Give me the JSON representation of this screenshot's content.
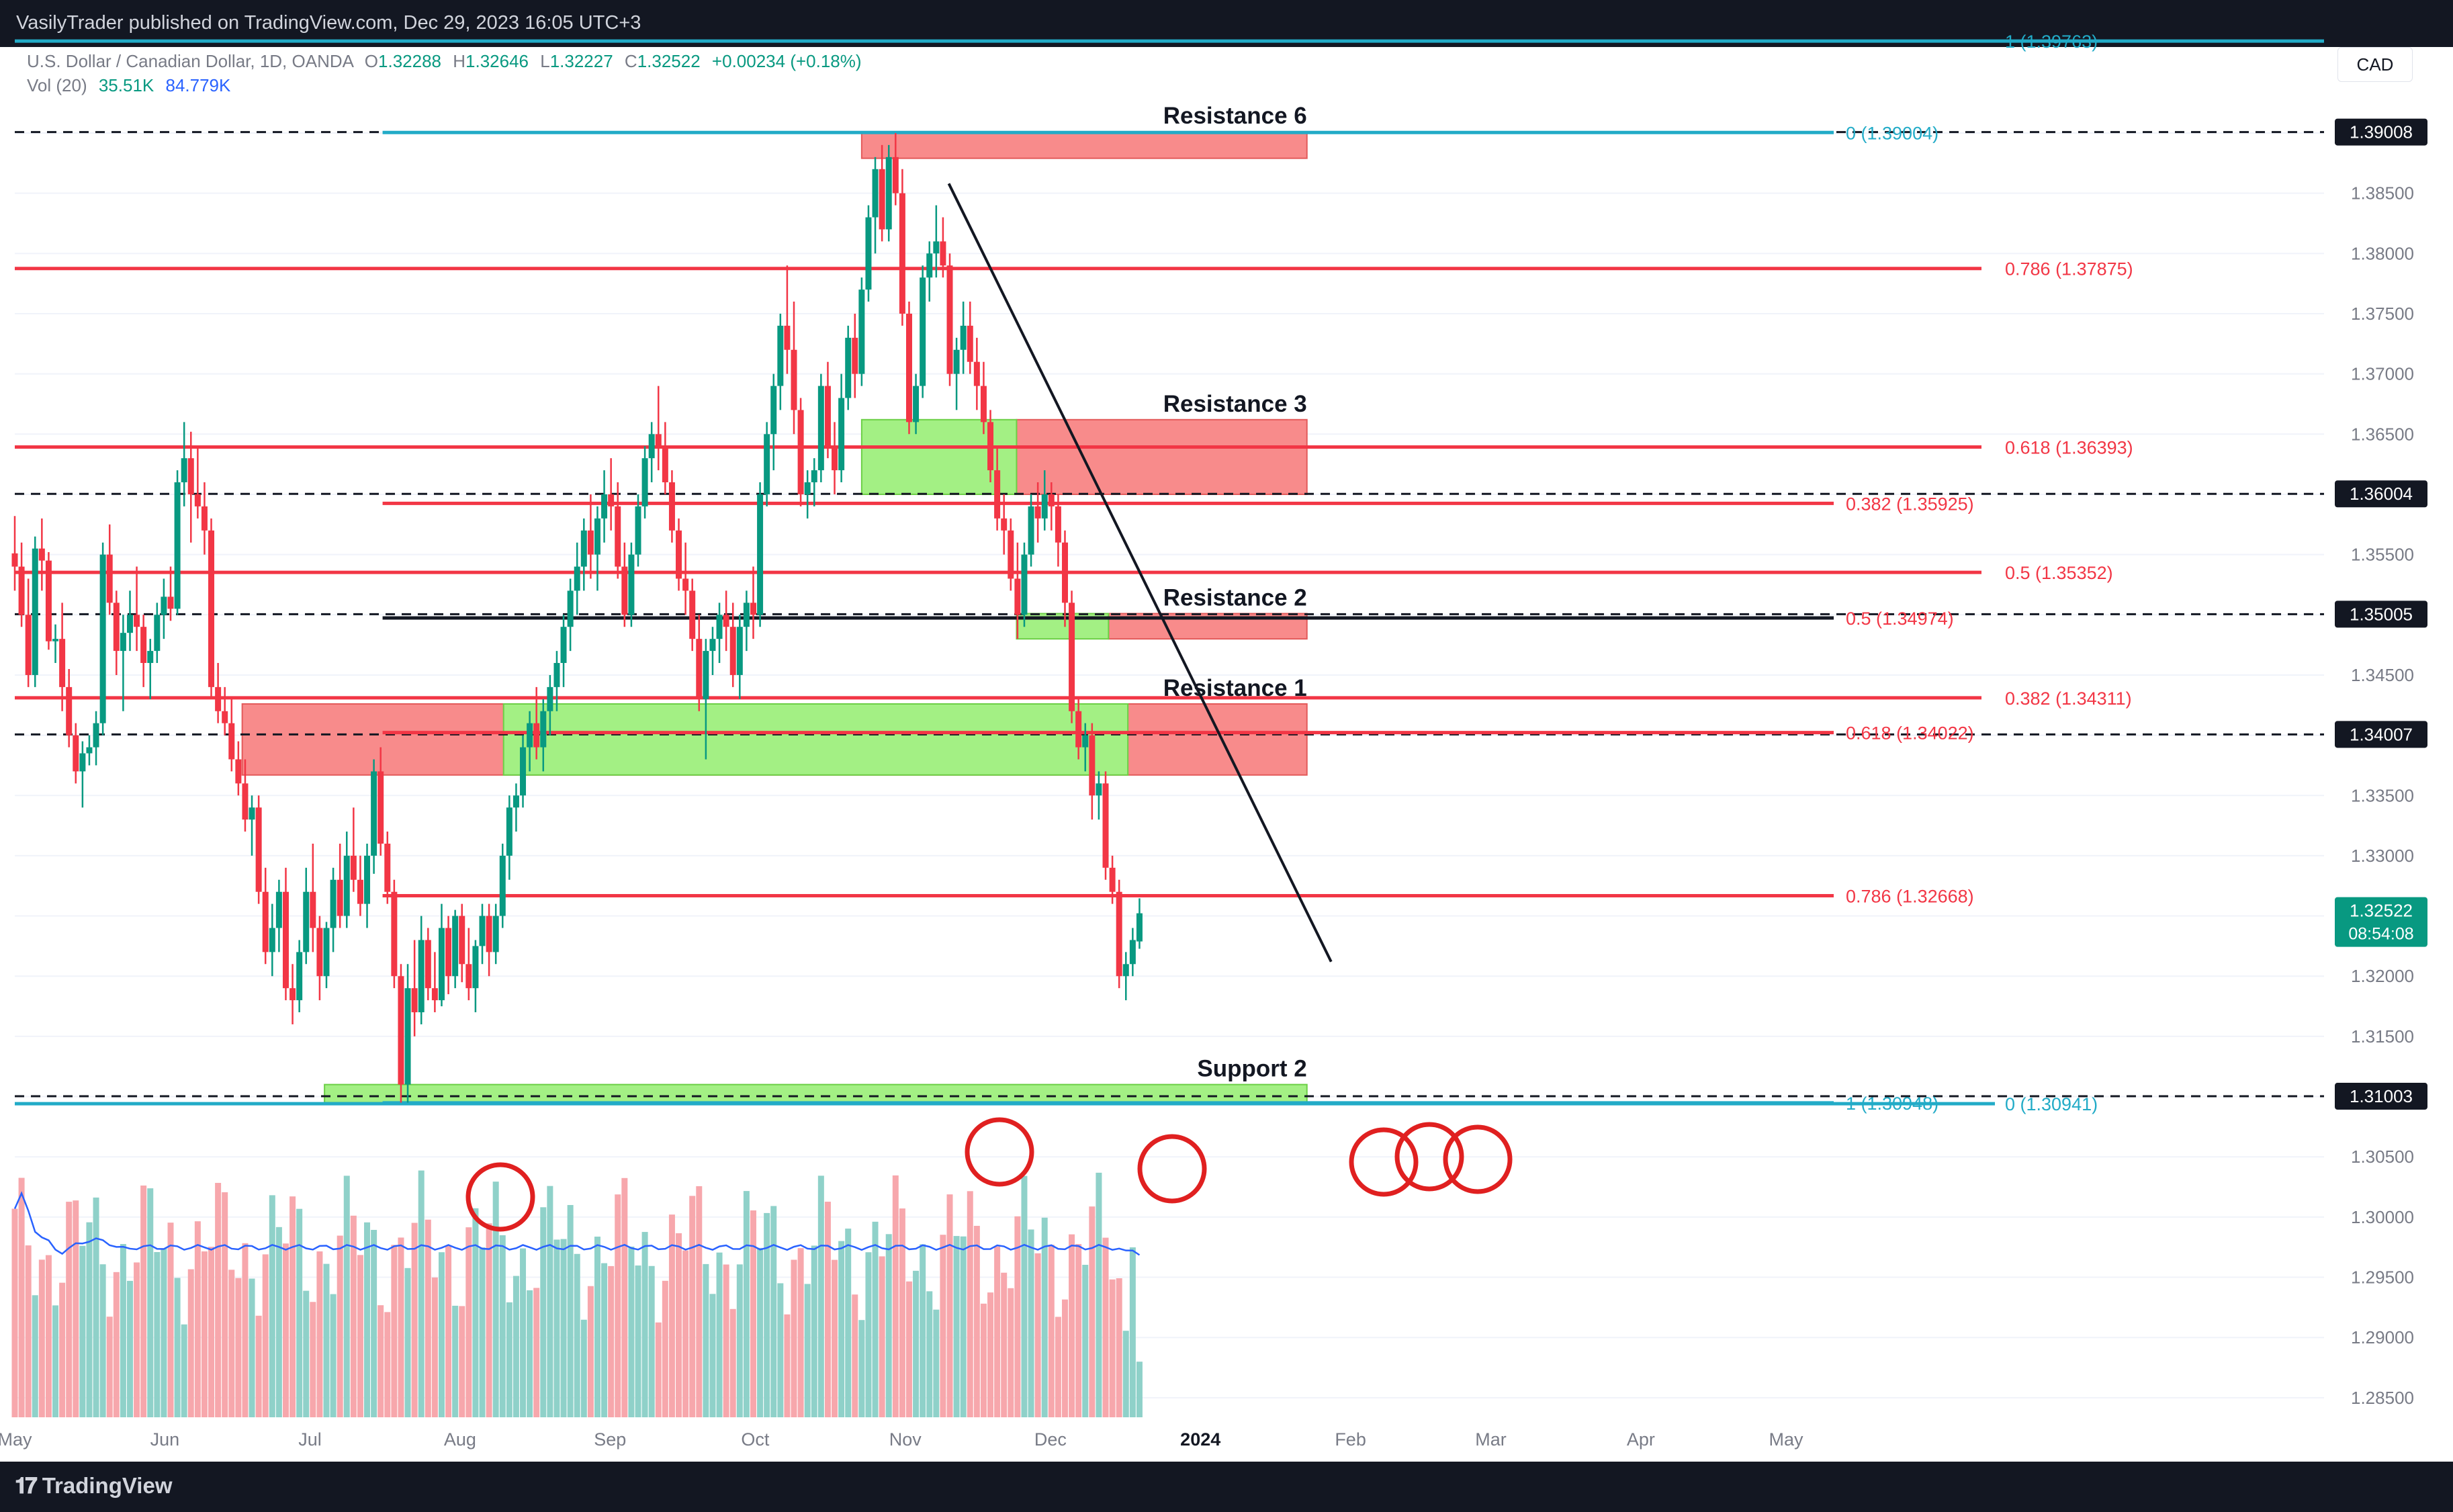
{
  "header": {
    "publisher_line": "VasilyTrader published on TradingView.com, Dec 29, 2023 16:05 UTC+3"
  },
  "legend": {
    "symbol": "U.S. Dollar / Canadian Dollar, 1D, OANDA",
    "o_label": "O",
    "o_value": "1.32288",
    "h_label": "H",
    "h_value": "1.32646",
    "l_label": "L",
    "l_value": "1.32227",
    "c_label": "C",
    "c_value": "1.32522",
    "change": "+0.00234 (+0.18%)",
    "vol_label": "Vol (20)",
    "vol_value": "35.51K",
    "vol_ma": "84.779K"
  },
  "currency": "CAD",
  "footer": {
    "brand": "TradingView"
  },
  "colors": {
    "up": "#089981",
    "down": "#f23645",
    "up_vol": "#8fd1c9",
    "down_vol": "#f7a7ac",
    "red_line": "#f23645",
    "teal_line": "#22abc7",
    "resistance_zone": "#f88b8b",
    "support_zone": "#a3f084",
    "ma_line": "#2962ff",
    "circle": "#e02020",
    "price_tag": "#131722",
    "last_tag": "#089981"
  },
  "chart_data": {
    "type": "candlestick",
    "symbol": "U.S. Dollar / Canadian Dollar, 1D, OANDA",
    "y_ticks": [
      "1.39000",
      "1.38500",
      "1.38000",
      "1.37500",
      "1.37000",
      "1.36500",
      "1.36000",
      "1.35500",
      "1.35000",
      "1.34500",
      "1.34000",
      "1.33500",
      "1.33000",
      "1.32500",
      "1.32000",
      "1.31500",
      "1.31000",
      "1.30500",
      "1.30000",
      "1.29500",
      "1.29000",
      "1.28500"
    ],
    "y_tick_values": [
      1.39,
      1.385,
      1.38,
      1.375,
      1.37,
      1.365,
      1.36,
      1.355,
      1.35,
      1.345,
      1.34,
      1.335,
      1.33,
      1.325,
      1.32,
      1.315,
      1.31,
      1.305,
      1.3,
      1.295,
      1.29,
      1.285
    ],
    "ylim": [
      1.2825,
      1.3985
    ],
    "x_ticks": [
      "May",
      "Jun",
      "Jul",
      "Aug",
      "Sep",
      "Oct",
      "Nov",
      "Dec",
      "2024",
      "Feb",
      "Mar",
      "Apr",
      "May"
    ],
    "x_tick_days": [
      0,
      31,
      61,
      92,
      123,
      153,
      184,
      214,
      245,
      276,
      305,
      336,
      366
    ],
    "price_tags": [
      {
        "label": "1.39008",
        "value": 1.39008
      },
      {
        "label": "1.36004",
        "value": 1.36004
      },
      {
        "label": "1.35005",
        "value": 1.35005
      },
      {
        "label": "1.34007",
        "value": 1.34007
      },
      {
        "label": "1.31003",
        "value": 1.31003
      }
    ],
    "last_price": {
      "label": "1.32522",
      "timer": "08:54:08",
      "value": 1.32522
    },
    "horizontal_levels": [
      {
        "value": 1.39008,
        "style": "dashed"
      },
      {
        "value": 1.36004,
        "style": "dashed"
      },
      {
        "value": 1.35005,
        "style": "dashed"
      },
      {
        "value": 1.34007,
        "style": "dashed"
      },
      {
        "value": 1.31003,
        "style": "dashed"
      }
    ],
    "fib_left": {
      "from_day": 0,
      "to_day": 206,
      "levels": [
        {
          "ratio": "0.786",
          "label": "0.786 (1.37875)",
          "value": 1.37875
        },
        {
          "ratio": "0.618",
          "label": "0.618 (1.36393)",
          "value": 1.36393
        },
        {
          "ratio": "0.5",
          "label": "0.5 (1.35352)",
          "value": 1.35352
        },
        {
          "ratio": "0.382",
          "label": "0.382 (1.34311)",
          "value": 1.34311
        }
      ],
      "bottom_label": "0 (1.30941)",
      "bottom_value": 1.30941
    },
    "fib_right": {
      "from_day": 76,
      "to_day": 206,
      "levels": [
        {
          "label": "0 (1.39004)",
          "value": 1.39004,
          "color": "teal"
        },
        {
          "label": "0.382 (1.35925)",
          "value": 1.35925,
          "color": "red"
        },
        {
          "label": "0.5 (1.34974)",
          "value": 1.34974,
          "color": "black"
        },
        {
          "label": "0.618 (1.34022)",
          "value": 1.34022,
          "color": "red"
        },
        {
          "label": "0.786 (1.32668)",
          "value": 1.32668,
          "color": "red"
        },
        {
          "label": "1 (1.30948)",
          "value": 1.30948,
          "color": "teal"
        }
      ],
      "top_label": "1 (1.39763)",
      "top_value": 1.39763
    },
    "zones": [
      {
        "label": "Resistance 6",
        "kind": "resistance",
        "from_day": 175,
        "to_day": 267,
        "top": 1.3901,
        "bottom": 1.3879
      },
      {
        "label": "Resistance 3",
        "kind": "resistance",
        "from_day": 207,
        "to_day": 267,
        "top": 1.3662,
        "bottom": 1.36
      },
      {
        "label": "",
        "kind": "support",
        "from_day": 175,
        "to_day": 207,
        "top": 1.3662,
        "bottom": 1.36
      },
      {
        "label": "Resistance 2",
        "kind": "resistance",
        "from_day": 226,
        "to_day": 267,
        "top": 1.3501,
        "bottom": 1.348
      },
      {
        "label": "",
        "kind": "support",
        "from_day": 207,
        "to_day": 226,
        "top": 1.3501,
        "bottom": 1.348
      },
      {
        "label": "Resistance 1",
        "kind": "resistance",
        "from_day": 47,
        "to_day": 267,
        "top": 1.3426,
        "bottom": 1.3367
      },
      {
        "label": "",
        "kind": "support",
        "from_day": 101,
        "to_day": 230,
        "top": 1.3426,
        "bottom": 1.3367
      },
      {
        "label": "Support 2",
        "kind": "support",
        "from_day": 64,
        "to_day": 267,
        "top": 1.311,
        "bottom": 1.3095
      }
    ],
    "trendline": {
      "from_day": 193,
      "from_value": 1.3858,
      "to_day": 272,
      "to_value": 1.3212
    },
    "candles_ohlc": [
      [
        1.3551,
        1.3582,
        1.352,
        1.354
      ],
      [
        1.354,
        1.356,
        1.349,
        1.35
      ],
      [
        1.35,
        1.353,
        1.344,
        1.345
      ],
      [
        1.345,
        1.3565,
        1.344,
        1.3555
      ],
      [
        1.3555,
        1.358,
        1.352,
        1.3545
      ],
      [
        1.3545,
        1.3552,
        1.3471,
        1.3478
      ],
      [
        1.3478,
        1.3492,
        1.346,
        1.348
      ],
      [
        1.348,
        1.351,
        1.342,
        1.344
      ],
      [
        1.344,
        1.3455,
        1.339,
        1.34
      ],
      [
        1.34,
        1.341,
        1.336,
        1.337
      ],
      [
        1.337,
        1.3395,
        1.334,
        1.3385
      ],
      [
        1.3385,
        1.34,
        1.3375,
        1.339
      ],
      [
        1.339,
        1.342,
        1.3375,
        1.341
      ],
      [
        1.341,
        1.356,
        1.34,
        1.355
      ],
      [
        1.355,
        1.3575,
        1.35,
        1.351
      ],
      [
        1.351,
        1.352,
        1.345,
        1.347
      ],
      [
        1.347,
        1.35,
        1.342,
        1.3485
      ],
      [
        1.3485,
        1.352,
        1.347,
        1.35
      ],
      [
        1.35,
        1.354,
        1.347,
        1.349
      ],
      [
        1.349,
        1.35,
        1.344,
        1.346
      ],
      [
        1.346,
        1.348,
        1.343,
        1.347
      ],
      [
        1.347,
        1.351,
        1.346,
        1.35
      ],
      [
        1.35,
        1.353,
        1.348,
        1.3515
      ],
      [
        1.3515,
        1.354,
        1.3495,
        1.3505
      ],
      [
        1.3505,
        1.362,
        1.35,
        1.361
      ],
      [
        1.361,
        1.366,
        1.359,
        1.363
      ],
      [
        1.363,
        1.3652,
        1.356,
        1.36
      ],
      [
        1.36,
        1.364,
        1.358,
        1.359
      ],
      [
        1.359,
        1.361,
        1.355,
        1.357
      ],
      [
        1.357,
        1.358,
        1.343,
        1.344
      ],
      [
        1.344,
        1.346,
        1.341,
        1.342
      ],
      [
        1.342,
        1.344,
        1.34,
        1.341
      ],
      [
        1.341,
        1.343,
        1.337,
        1.338
      ],
      [
        1.338,
        1.3395,
        1.335,
        1.336
      ],
      [
        1.336,
        1.338,
        1.332,
        1.333
      ],
      [
        1.333,
        1.335,
        1.33,
        1.334
      ],
      [
        1.334,
        1.335,
        1.326,
        1.327
      ],
      [
        1.327,
        1.329,
        1.321,
        1.322
      ],
      [
        1.322,
        1.326,
        1.32,
        1.324
      ],
      [
        1.324,
        1.328,
        1.322,
        1.327
      ],
      [
        1.327,
        1.329,
        1.318,
        1.319
      ],
      [
        1.319,
        1.321,
        1.316,
        1.318
      ],
      [
        1.318,
        1.323,
        1.317,
        1.322
      ],
      [
        1.322,
        1.329,
        1.321,
        1.327
      ],
      [
        1.327,
        1.331,
        1.322,
        1.324
      ],
      [
        1.324,
        1.325,
        1.318,
        1.32
      ],
      [
        1.32,
        1.3245,
        1.319,
        1.324
      ],
      [
        1.324,
        1.329,
        1.322,
        1.328
      ],
      [
        1.328,
        1.331,
        1.324,
        1.325
      ],
      [
        1.325,
        1.332,
        1.324,
        1.33
      ],
      [
        1.33,
        1.334,
        1.327,
        1.328
      ],
      [
        1.328,
        1.33,
        1.325,
        1.326
      ],
      [
        1.326,
        1.331,
        1.324,
        1.33
      ],
      [
        1.33,
        1.338,
        1.3285,
        1.337
      ],
      [
        1.337,
        1.339,
        1.33,
        1.331
      ],
      [
        1.331,
        1.332,
        1.326,
        1.327
      ],
      [
        1.327,
        1.328,
        1.319,
        1.32
      ],
      [
        1.32,
        1.321,
        1.3095,
        1.311
      ],
      [
        1.311,
        1.321,
        1.3095,
        1.319
      ],
      [
        1.319,
        1.323,
        1.315,
        1.317
      ],
      [
        1.317,
        1.325,
        1.316,
        1.323
      ],
      [
        1.323,
        1.324,
        1.318,
        1.319
      ],
      [
        1.319,
        1.322,
        1.317,
        1.318
      ],
      [
        1.318,
        1.326,
        1.3175,
        1.324
      ],
      [
        1.324,
        1.325,
        1.3185,
        1.32
      ],
      [
        1.32,
        1.3255,
        1.319,
        1.325
      ],
      [
        1.325,
        1.326,
        1.3195,
        1.321
      ],
      [
        1.321,
        1.324,
        1.318,
        1.319
      ],
      [
        1.319,
        1.323,
        1.317,
        1.3225
      ],
      [
        1.3225,
        1.326,
        1.321,
        1.325
      ],
      [
        1.325,
        1.326,
        1.32,
        1.322
      ],
      [
        1.322,
        1.326,
        1.321,
        1.325
      ],
      [
        1.325,
        1.331,
        1.324,
        1.33
      ],
      [
        1.33,
        1.335,
        1.328,
        1.334
      ],
      [
        1.334,
        1.336,
        1.332,
        1.335
      ],
      [
        1.335,
        1.34,
        1.334,
        1.339
      ],
      [
        1.339,
        1.342,
        1.337,
        1.341
      ],
      [
        1.341,
        1.344,
        1.338,
        1.339
      ],
      [
        1.339,
        1.343,
        1.337,
        1.342
      ],
      [
        1.342,
        1.345,
        1.34,
        1.344
      ],
      [
        1.344,
        1.347,
        1.342,
        1.346
      ],
      [
        1.346,
        1.35,
        1.344,
        1.349
      ],
      [
        1.349,
        1.353,
        1.347,
        1.352
      ],
      [
        1.352,
        1.356,
        1.35,
        1.354
      ],
      [
        1.354,
        1.358,
        1.352,
        1.357
      ],
      [
        1.357,
        1.36,
        1.353,
        1.355
      ],
      [
        1.355,
        1.359,
        1.352,
        1.358
      ],
      [
        1.358,
        1.362,
        1.356,
        1.36
      ],
      [
        1.36,
        1.363,
        1.357,
        1.359
      ],
      [
        1.359,
        1.361,
        1.353,
        1.354
      ],
      [
        1.354,
        1.356,
        1.349,
        1.35
      ],
      [
        1.35,
        1.356,
        1.349,
        1.355
      ],
      [
        1.355,
        1.36,
        1.354,
        1.359
      ],
      [
        1.359,
        1.364,
        1.358,
        1.363
      ],
      [
        1.363,
        1.366,
        1.361,
        1.365
      ],
      [
        1.365,
        1.369,
        1.362,
        1.364
      ],
      [
        1.364,
        1.366,
        1.36,
        1.361
      ],
      [
        1.361,
        1.362,
        1.356,
        1.357
      ],
      [
        1.357,
        1.358,
        1.352,
        1.353
      ],
      [
        1.353,
        1.356,
        1.35,
        1.352
      ],
      [
        1.352,
        1.353,
        1.347,
        1.348
      ],
      [
        1.348,
        1.35,
        1.342,
        1.343
      ],
      [
        1.343,
        1.348,
        1.338,
        1.347
      ],
      [
        1.347,
        1.349,
        1.345,
        1.348
      ],
      [
        1.348,
        1.351,
        1.346,
        1.35
      ],
      [
        1.35,
        1.352,
        1.347,
        1.349
      ],
      [
        1.349,
        1.351,
        1.344,
        1.345
      ],
      [
        1.345,
        1.35,
        1.343,
        1.349
      ],
      [
        1.349,
        1.352,
        1.347,
        1.351
      ],
      [
        1.351,
        1.354,
        1.348,
        1.35
      ],
      [
        1.35,
        1.361,
        1.349,
        1.36
      ],
      [
        1.36,
        1.366,
        1.359,
        1.365
      ],
      [
        1.365,
        1.37,
        1.362,
        1.369
      ],
      [
        1.369,
        1.375,
        1.367,
        1.374
      ],
      [
        1.374,
        1.379,
        1.37,
        1.372
      ],
      [
        1.372,
        1.376,
        1.365,
        1.367
      ],
      [
        1.367,
        1.368,
        1.359,
        1.36
      ],
      [
        1.36,
        1.362,
        1.358,
        1.361
      ],
      [
        1.361,
        1.363,
        1.359,
        1.362
      ],
      [
        1.362,
        1.37,
        1.361,
        1.369
      ],
      [
        1.369,
        1.371,
        1.363,
        1.364
      ],
      [
        1.364,
        1.366,
        1.36,
        1.362
      ],
      [
        1.362,
        1.37,
        1.361,
        1.368
      ],
      [
        1.368,
        1.374,
        1.367,
        1.373
      ],
      [
        1.373,
        1.375,
        1.368,
        1.37
      ],
      [
        1.37,
        1.378,
        1.369,
        1.377
      ],
      [
        1.377,
        1.384,
        1.376,
        1.383
      ],
      [
        1.383,
        1.388,
        1.38,
        1.387
      ],
      [
        1.387,
        1.389,
        1.381,
        1.382
      ],
      [
        1.382,
        1.389,
        1.381,
        1.388
      ],
      [
        1.388,
        1.39,
        1.384,
        1.385
      ],
      [
        1.385,
        1.387,
        1.374,
        1.375
      ],
      [
        1.375,
        1.376,
        1.365,
        1.366
      ],
      [
        1.366,
        1.37,
        1.365,
        1.369
      ],
      [
        1.369,
        1.379,
        1.368,
        1.378
      ],
      [
        1.378,
        1.381,
        1.376,
        1.38
      ],
      [
        1.38,
        1.384,
        1.378,
        1.381
      ],
      [
        1.381,
        1.383,
        1.378,
        1.379
      ],
      [
        1.379,
        1.38,
        1.369,
        1.37
      ],
      [
        1.37,
        1.373,
        1.367,
        1.372
      ],
      [
        1.372,
        1.376,
        1.37,
        1.374
      ],
      [
        1.374,
        1.376,
        1.37,
        1.371
      ],
      [
        1.371,
        1.373,
        1.367,
        1.369
      ],
      [
        1.369,
        1.371,
        1.365,
        1.366
      ],
      [
        1.366,
        1.367,
        1.361,
        1.362
      ],
      [
        1.362,
        1.364,
        1.357,
        1.358
      ],
      [
        1.358,
        1.36,
        1.355,
        1.357
      ],
      [
        1.357,
        1.358,
        1.352,
        1.353
      ],
      [
        1.353,
        1.356,
        1.348,
        1.35
      ],
      [
        1.35,
        1.356,
        1.349,
        1.355
      ],
      [
        1.355,
        1.36,
        1.354,
        1.359
      ],
      [
        1.359,
        1.361,
        1.356,
        1.358
      ],
      [
        1.358,
        1.362,
        1.357,
        1.36
      ],
      [
        1.36,
        1.361,
        1.357,
        1.359
      ],
      [
        1.359,
        1.36,
        1.354,
        1.356
      ],
      [
        1.356,
        1.357,
        1.349,
        1.351
      ],
      [
        1.351,
        1.352,
        1.341,
        1.342
      ],
      [
        1.342,
        1.343,
        1.338,
        1.339
      ],
      [
        1.339,
        1.341,
        1.337,
        1.34
      ],
      [
        1.34,
        1.341,
        1.333,
        1.335
      ],
      [
        1.335,
        1.337,
        1.333,
        1.336
      ],
      [
        1.336,
        1.337,
        1.328,
        1.329
      ],
      [
        1.329,
        1.33,
        1.326,
        1.327
      ],
      [
        1.327,
        1.328,
        1.319,
        1.32
      ],
      [
        1.32,
        1.322,
        1.318,
        1.321
      ],
      [
        1.321,
        1.324,
        1.32,
        1.323
      ],
      [
        1.32288,
        1.32646,
        1.32227,
        1.32522
      ]
    ],
    "volume_ma_label": "Vol (20)"
  }
}
